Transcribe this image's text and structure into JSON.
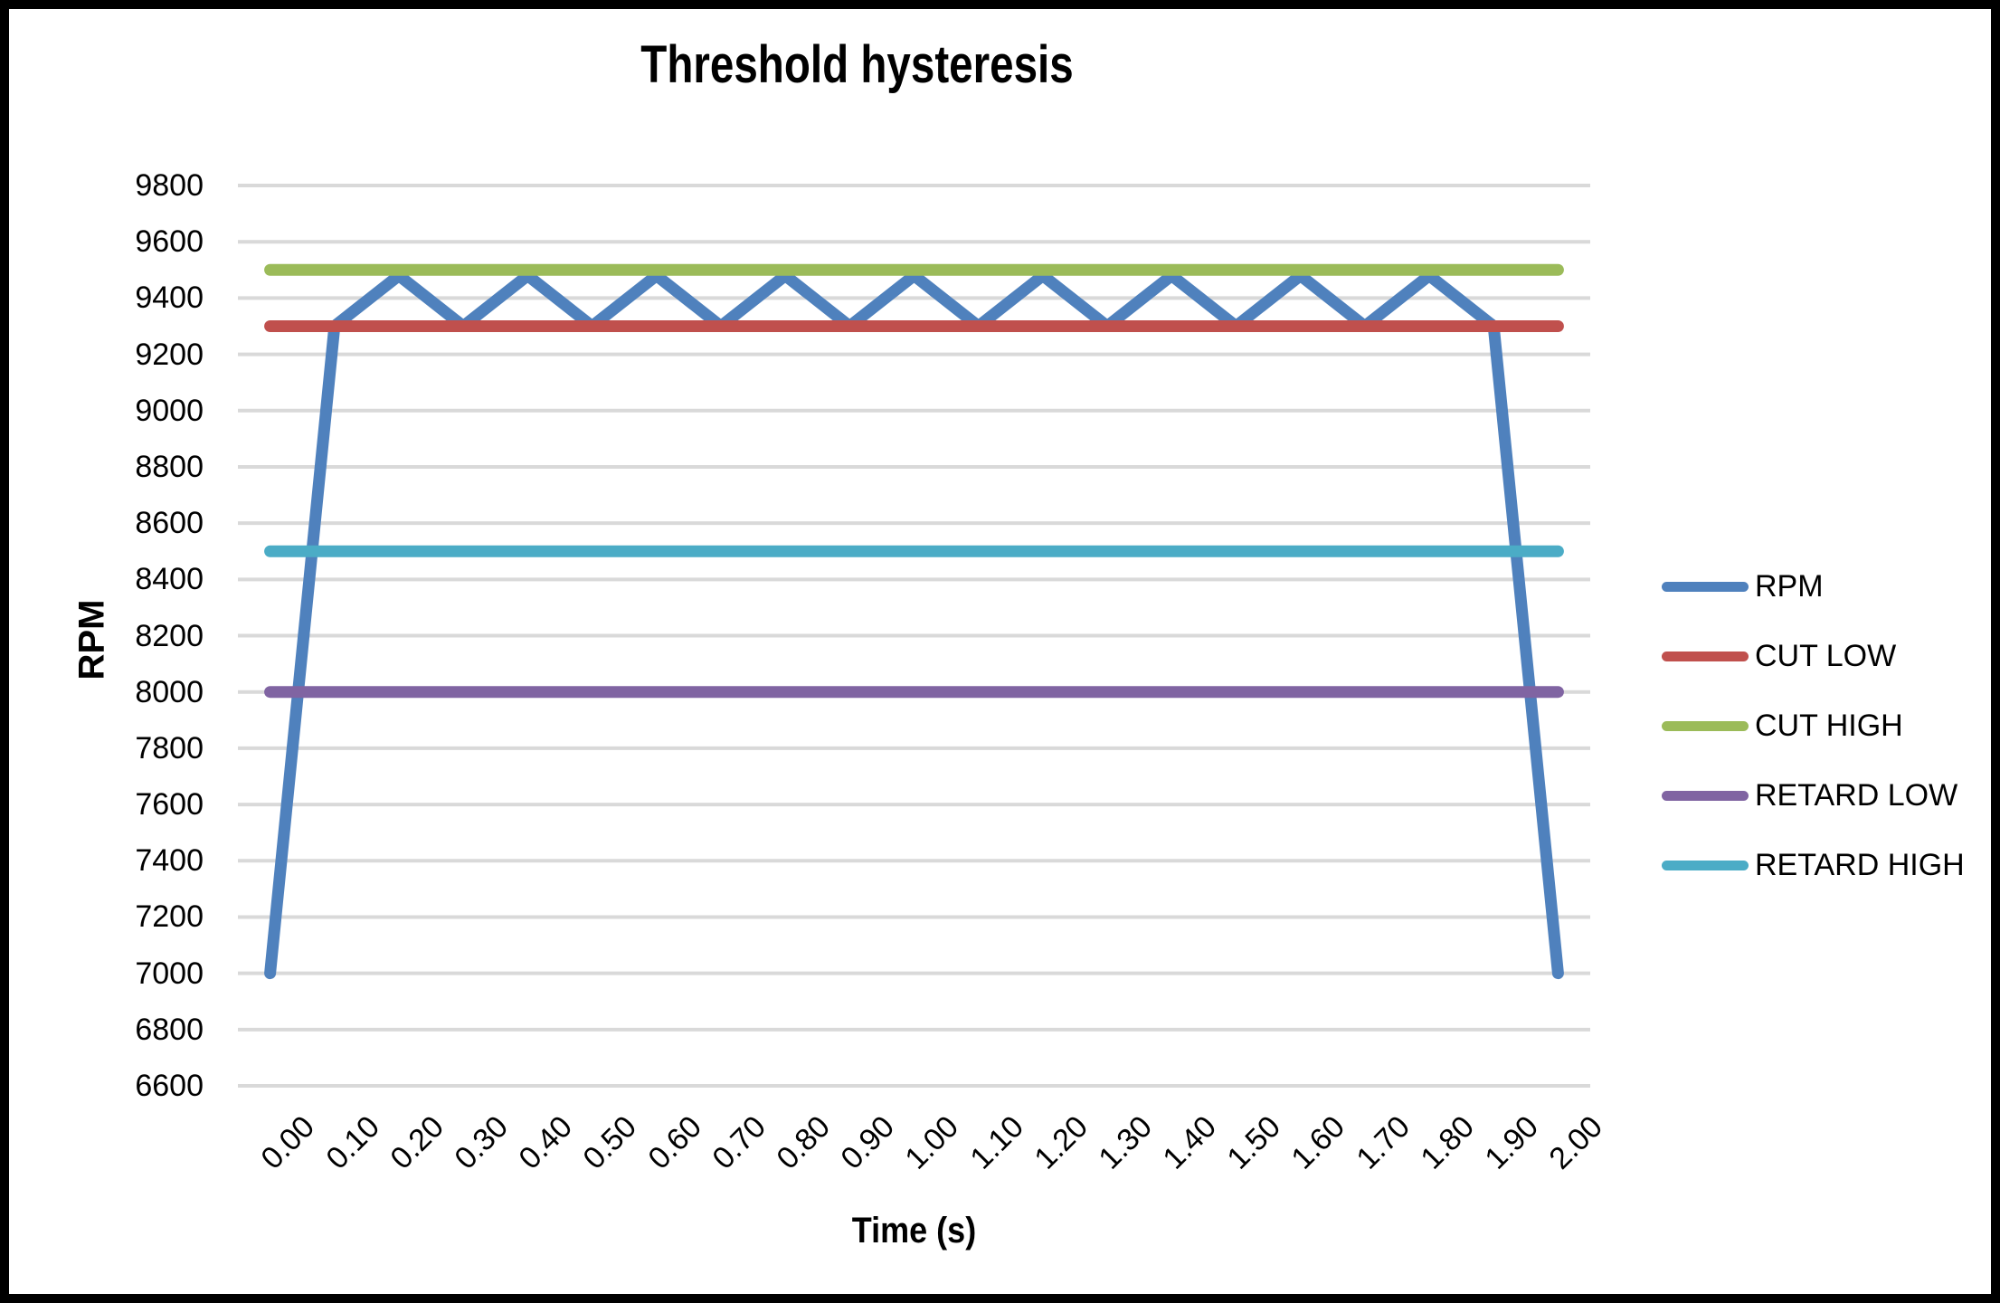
{
  "chart_data": {
    "type": "line",
    "title": "Threshold hysteresis",
    "xlabel": "Time (s)",
    "ylabel": "RPM",
    "categories": [
      "0.00",
      "0.10",
      "0.20",
      "0.30",
      "0.40",
      "0.50",
      "0.60",
      "0.70",
      "0.80",
      "0.90",
      "1.00",
      "1.10",
      "1.20",
      "1.30",
      "1.40",
      "1.50",
      "1.60",
      "1.70",
      "1.80",
      "1.90",
      "2.00"
    ],
    "ylim": [
      6600,
      9800
    ],
    "ytick_step": 200,
    "grid": true,
    "legend_position": "right",
    "series": [
      {
        "name": "RPM",
        "color": "#4F81BD",
        "values": [
          7000,
          9300,
          9480,
          9300,
          9480,
          9300,
          9480,
          9300,
          9480,
          9300,
          9480,
          9300,
          9480,
          9300,
          9480,
          9300,
          9480,
          9300,
          9480,
          9300,
          7000
        ]
      },
      {
        "name": "CUT LOW",
        "color": "#C0504D",
        "values": [
          9300,
          9300,
          9300,
          9300,
          9300,
          9300,
          9300,
          9300,
          9300,
          9300,
          9300,
          9300,
          9300,
          9300,
          9300,
          9300,
          9300,
          9300,
          9300,
          9300,
          9300
        ]
      },
      {
        "name": "CUT HIGH",
        "color": "#9BBB59",
        "values": [
          9500,
          9500,
          9500,
          9500,
          9500,
          9500,
          9500,
          9500,
          9500,
          9500,
          9500,
          9500,
          9500,
          9500,
          9500,
          9500,
          9500,
          9500,
          9500,
          9500,
          9500
        ]
      },
      {
        "name": "RETARD LOW",
        "color": "#8064A2",
        "values": [
          8000,
          8000,
          8000,
          8000,
          8000,
          8000,
          8000,
          8000,
          8000,
          8000,
          8000,
          8000,
          8000,
          8000,
          8000,
          8000,
          8000,
          8000,
          8000,
          8000,
          8000
        ]
      },
      {
        "name": "RETARD HIGH",
        "color": "#4BACC6",
        "values": [
          8500,
          8500,
          8500,
          8500,
          8500,
          8500,
          8500,
          8500,
          8500,
          8500,
          8500,
          8500,
          8500,
          8500,
          8500,
          8500,
          8500,
          8500,
          8500,
          8500,
          8500
        ]
      }
    ]
  },
  "colors": {
    "background": "#FFFFFF",
    "border": "#000000",
    "gridline": "#D9D9D9",
    "text": "#000000"
  }
}
